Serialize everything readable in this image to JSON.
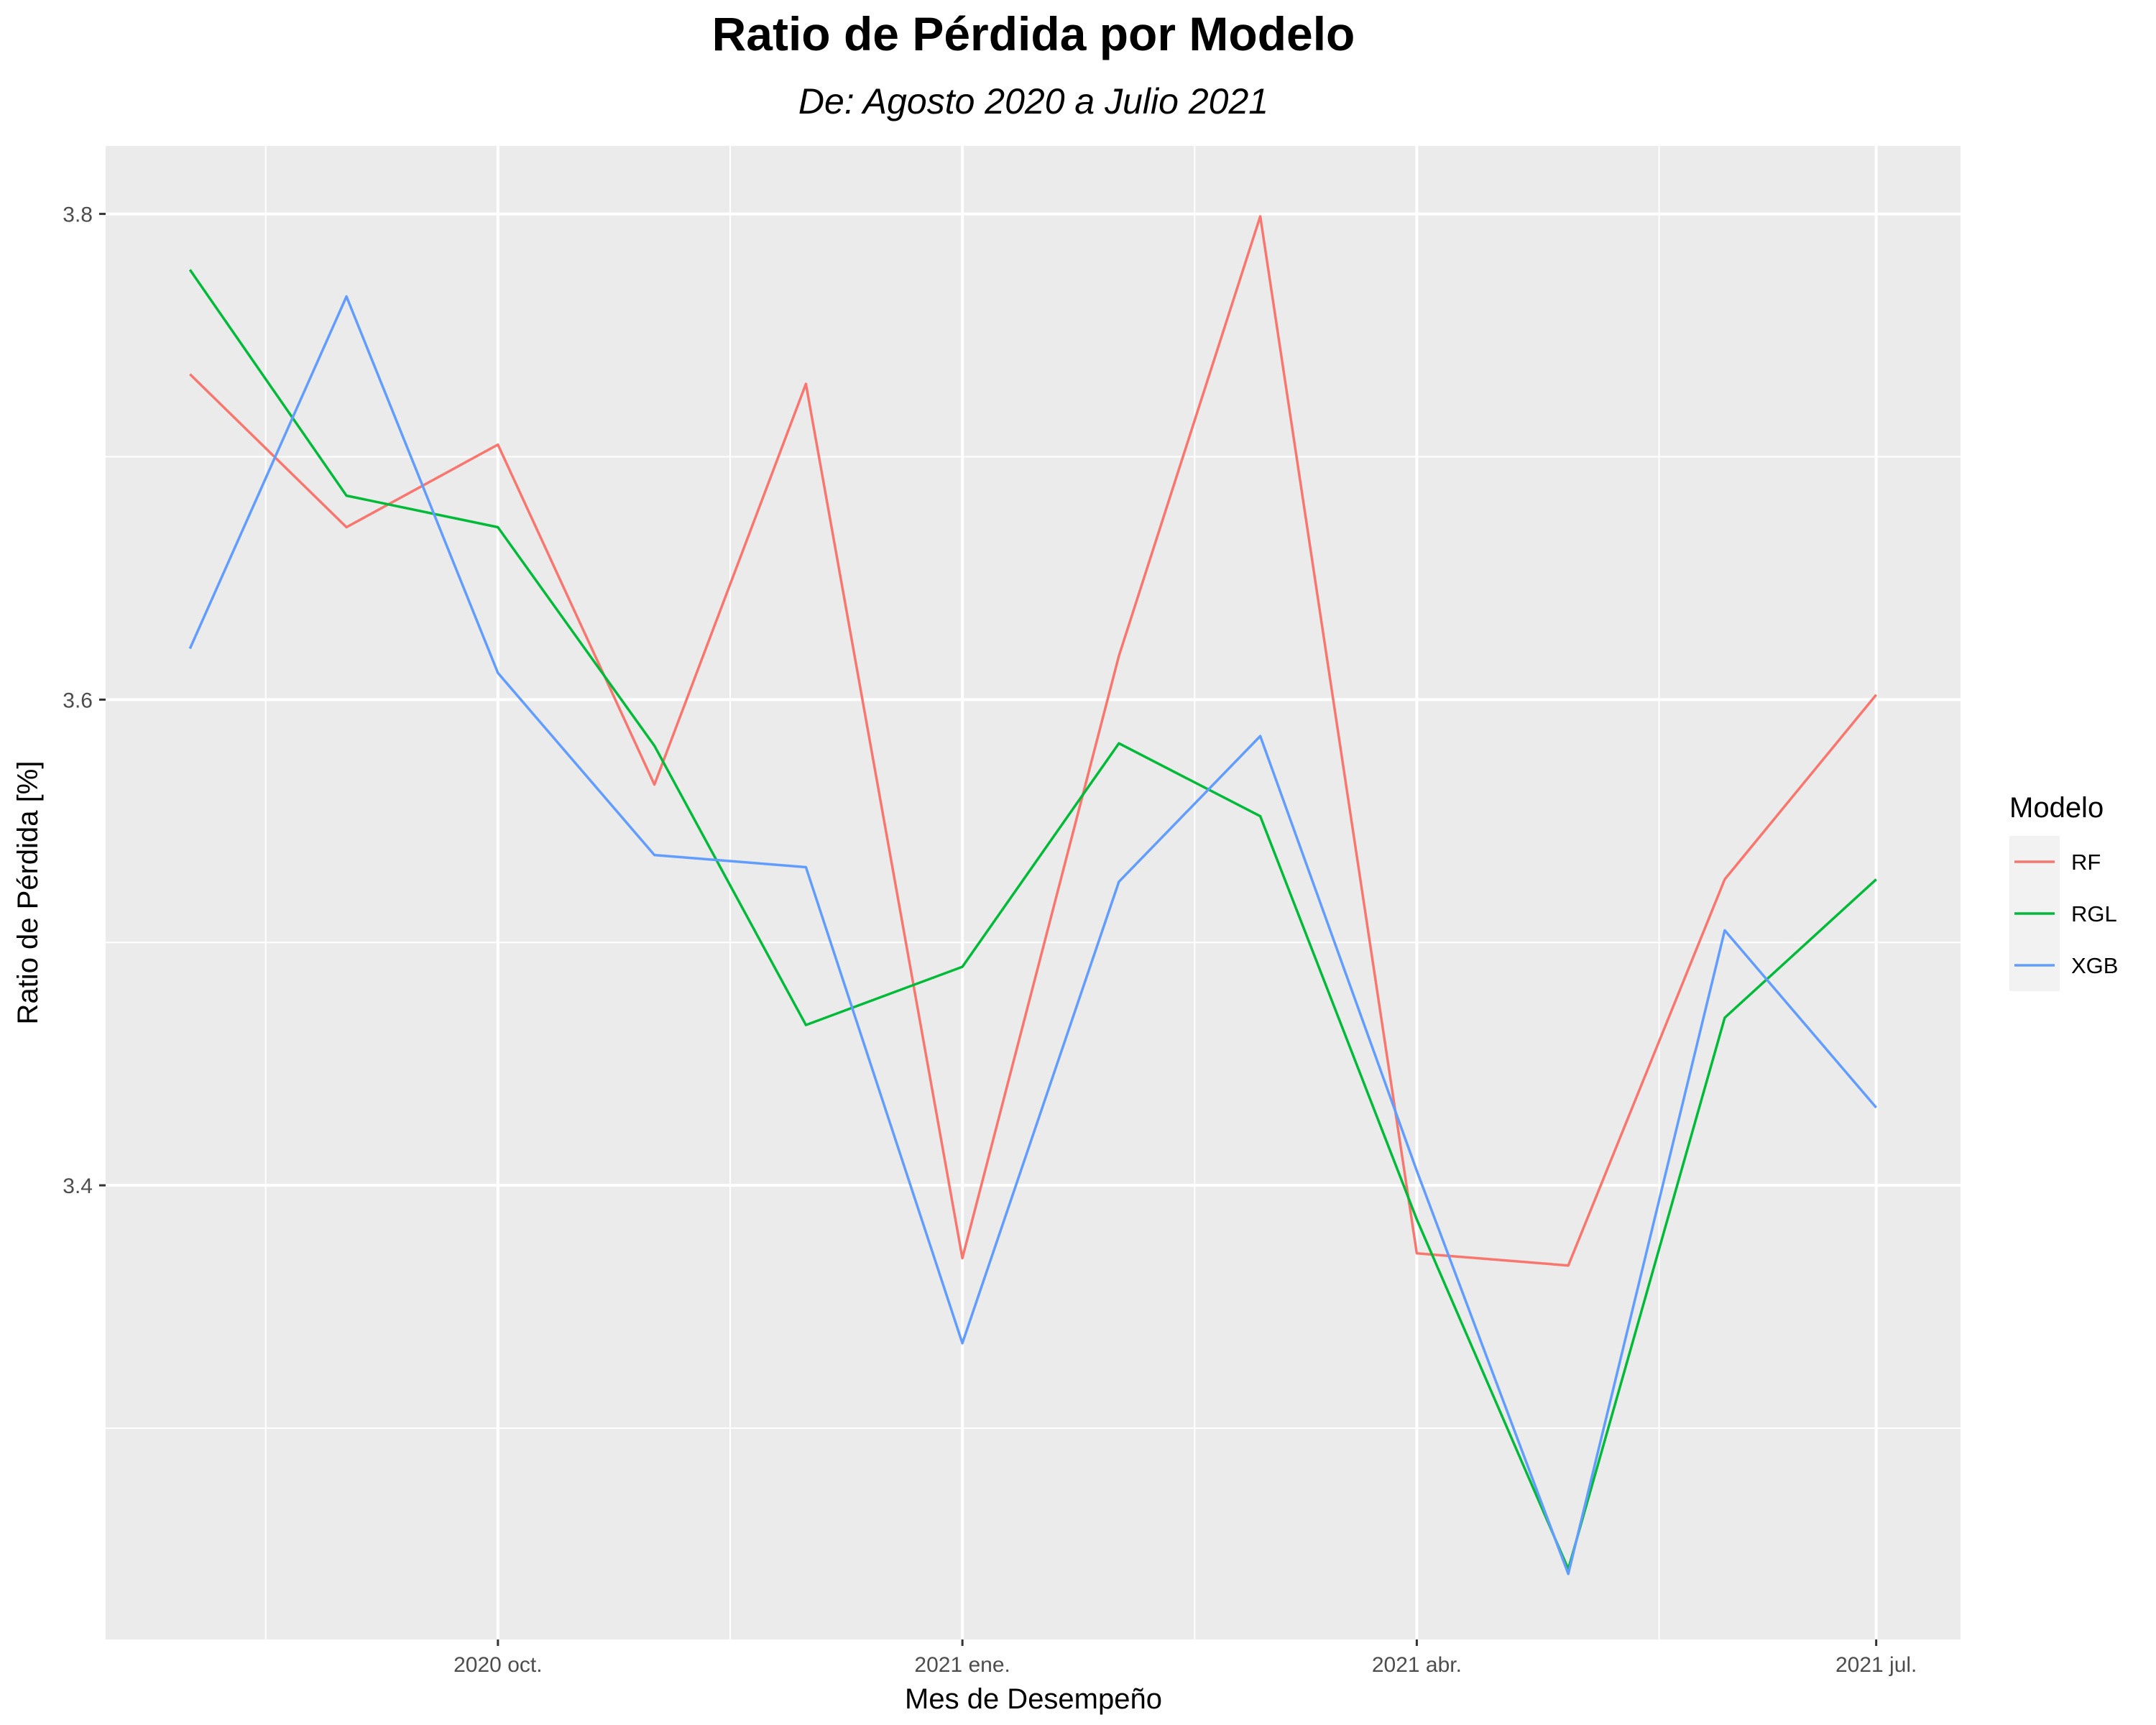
{
  "chart_data": {
    "type": "line",
    "title": "Ratio de Pérdida por Modelo",
    "subtitle": "De: Agosto 2020 a Julio 2021",
    "xlabel": "Mes de Desempeño",
    "ylabel": "Ratio de Pérdida [%]",
    "x": [
      "2020-08",
      "2020-09",
      "2020-10",
      "2020-11",
      "2020-12",
      "2021-01",
      "2021-02",
      "2021-03",
      "2021-04",
      "2021-05",
      "2021-06",
      "2021-07"
    ],
    "x_ticks": [
      {
        "month": "2020-10",
        "label": "2020 oct."
      },
      {
        "month": "2021-01",
        "label": "2021 ene."
      },
      {
        "month": "2021-04",
        "label": "2021 abr."
      },
      {
        "month": "2021-07",
        "label": "2021 jul."
      }
    ],
    "y_ticks": [
      {
        "value": 3.4,
        "label": "3.4"
      },
      {
        "value": 3.6,
        "label": "3.6"
      },
      {
        "value": 3.8,
        "label": "3.8"
      }
    ],
    "ylim": [
      3.213,
      3.828
    ],
    "grid": true,
    "background": "#ebebeb",
    "legend": {
      "title": "Modelo",
      "position": "right"
    },
    "series": [
      {
        "name": "RF",
        "color": "#f8766d",
        "values": [
          3.734,
          3.671,
          3.705,
          3.565,
          3.73,
          3.37,
          3.618,
          3.799,
          3.372,
          3.367,
          3.526,
          3.602
        ]
      },
      {
        "name": "RGL",
        "color": "#00ba38",
        "values": [
          3.777,
          3.684,
          3.671,
          3.581,
          3.466,
          3.49,
          3.582,
          3.552,
          3.386,
          3.242,
          3.469,
          3.526
        ]
      },
      {
        "name": "XGB",
        "color": "#619cff",
        "values": [
          3.621,
          3.766,
          3.611,
          3.536,
          3.531,
          3.335,
          3.525,
          3.585,
          3.406,
          3.24,
          3.505,
          3.432
        ]
      }
    ]
  }
}
